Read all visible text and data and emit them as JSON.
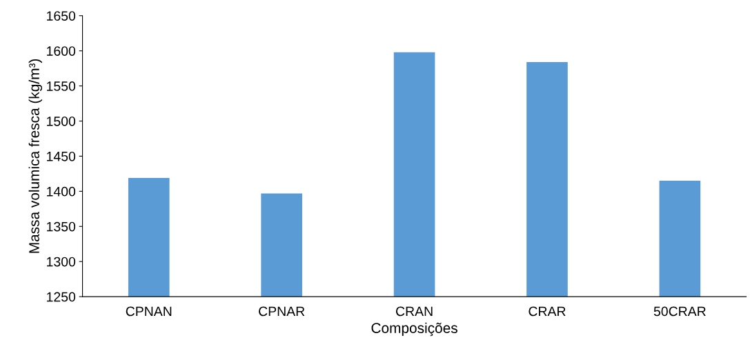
{
  "chart_data": {
    "type": "bar",
    "xlabel": "Composições",
    "ylabel": "Massa volumica fresca (kg/m³)",
    "categories": [
      "CPNAN",
      "CPNAR",
      "CRAN",
      "CRAR",
      "50CRAR"
    ],
    "values": [
      1419,
      1397,
      1598,
      1584,
      1415
    ],
    "color": "#5b9bd5",
    "ylim": [
      1250,
      1650
    ],
    "yticks": [
      1250,
      1300,
      1350,
      1400,
      1450,
      1500,
      1550,
      1600,
      1650
    ],
    "grid": false
  }
}
